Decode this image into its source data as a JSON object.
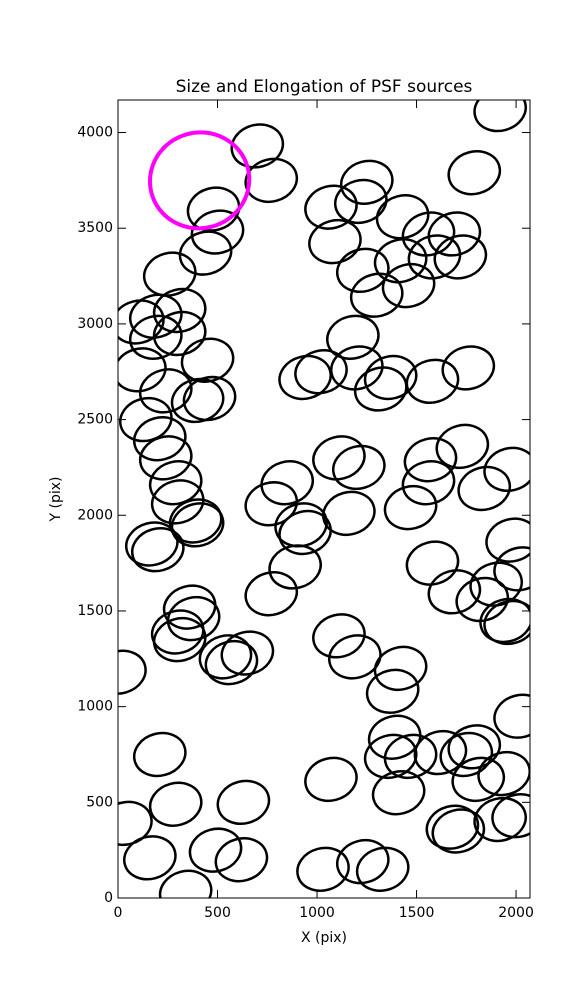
{
  "chart_data": {
    "type": "ellipse-scatter",
    "title": "Size and Elongation of PSF sources",
    "xlabel": "X (pix)",
    "ylabel": "Y (pix)",
    "xlim": [
      0,
      2070
    ],
    "ylim": [
      0,
      4170
    ],
    "xticks": [
      0,
      500,
      1000,
      1500,
      2000
    ],
    "yticks": [
      0,
      500,
      1000,
      1500,
      2000,
      2500,
      3000,
      3500,
      4000
    ],
    "series": [
      {
        "color": "#000000",
        "width": 260,
        "height": 220,
        "x": [
          700,
          770,
          480,
          500,
          440,
          260,
          310,
          190,
          100,
          310,
          190,
          450,
          110,
          240,
          400,
          460,
          140,
          210,
          240,
          290,
          300,
          390,
          400,
          170,
          200,
          890,
          770,
          1920,
          1790,
          1070,
          1250,
          1220,
          1090,
          1430,
          1230,
          1420,
          1300,
          1460,
          1560,
          1690,
          1590,
          1720,
          1180,
          1200,
          1020,
          940,
          1370,
          1320,
          1580,
          1760,
          1730,
          1570,
          1560,
          1470,
          1970,
          1840,
          1110,
          1210,
          850,
          770,
          920,
          940,
          1160,
          1980,
          2020,
          1580,
          1690,
          1900,
          1830,
          1950,
          1970,
          360,
          380,
          300,
          310,
          540,
          570,
          650,
          10,
          1110,
          1190,
          1420,
          1380,
          2020,
          1390,
          1370,
          1470,
          1620,
          1750,
          1790,
          1810,
          1940,
          1410,
          1070,
          210,
          290,
          630,
          40,
          490,
          160,
          620,
          340,
          1030,
          1230,
          1330,
          1680,
          1710,
          1920,
          2010
        ],
        "y": [
          3930,
          3750,
          3600,
          3480,
          3370,
          3260,
          3070,
          3040,
          3010,
          2950,
          2930,
          2810,
          2760,
          2650,
          2600,
          2610,
          2500,
          2400,
          2300,
          2170,
          2070,
          1970,
          1950,
          1850,
          1820,
          1730,
          1590,
          4120,
          3790,
          3610,
          3740,
          3640,
          3430,
          3560,
          3280,
          3330,
          3150,
          3200,
          3470,
          3470,
          3350,
          3350,
          2930,
          2770,
          2750,
          2720,
          2720,
          2660,
          2700,
          2770,
          2360,
          2290,
          2170,
          2040,
          2240,
          2140,
          2300,
          2250,
          2170,
          2060,
          1950,
          1910,
          2010,
          1870,
          1720,
          1750,
          1600,
          1640,
          1560,
          1450,
          1440,
          1520,
          1460,
          1390,
          1350,
          1260,
          1230,
          1280,
          1180,
          1370,
          1260,
          1200,
          1080,
          950,
          840,
          740,
          740,
          760,
          750,
          790,
          620,
          650,
          550,
          620,
          750,
          490,
          500,
          390,
          250,
          210,
          200,
          30,
          150,
          190,
          150,
          370,
          350,
          410,
          430
        ]
      },
      {
        "color": "#ff00ff",
        "width": 500,
        "height": 500,
        "x": [
          410
        ],
        "y": [
          3750
        ]
      }
    ]
  }
}
